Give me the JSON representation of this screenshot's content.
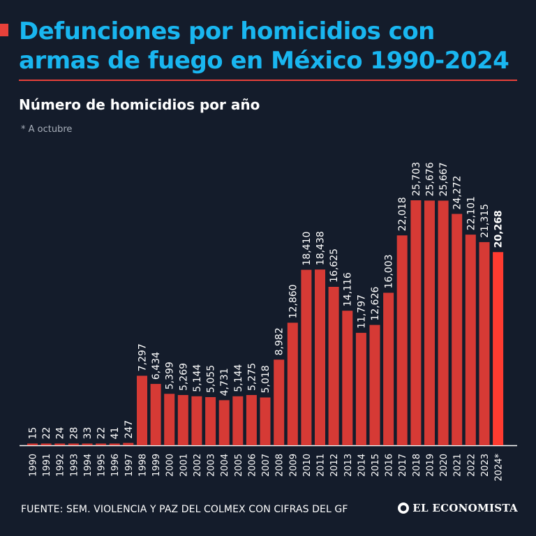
{
  "header": {
    "title": "Defunciones por homicidios con armas de fuego en México 1990-2024",
    "subtitle": "Número de homicidios por año",
    "note": "* A octubre"
  },
  "footer": {
    "source": "FUENTE: SEM. VIOLENCIA Y PAZ DEL COLMEX CON CIFRAS DEL GF",
    "brand": "EL ECONOMISTA",
    "brand_icon": "globe-icon"
  },
  "colors": {
    "background": "#141c2b",
    "title": "#19b6f0",
    "accent": "#e8413a",
    "bar": "#d63a35",
    "bar_highlight": "#ff3b30",
    "text": "#ffffff"
  },
  "chart_data": {
    "type": "bar",
    "categories": [
      "1990",
      "1991",
      "1992",
      "1993",
      "1994",
      "1995",
      "1996",
      "1997",
      "1998",
      "1999",
      "2000",
      "2001",
      "2002",
      "2003",
      "2004",
      "2005",
      "2006",
      "2007",
      "2008",
      "2009",
      "2010",
      "2011",
      "2012",
      "2013",
      "2014",
      "2015",
      "2016",
      "2017",
      "2018",
      "2019",
      "2020",
      "2021",
      "2022",
      "2023",
      "2024*"
    ],
    "values": [
      15,
      22,
      24,
      28,
      33,
      22,
      41,
      247,
      7297,
      6434,
      5399,
      5269,
      5144,
      5055,
      4731,
      5144,
      5275,
      5018,
      8982,
      12860,
      18410,
      18438,
      16625,
      14116,
      11797,
      12626,
      16003,
      22018,
      25703,
      25676,
      25667,
      24272,
      22101,
      21315,
      20268
    ],
    "value_labels": [
      "15",
      "22",
      "24",
      "28",
      "33",
      "22",
      "41",
      "247",
      "7,297",
      "6,434",
      "5,399",
      "5,269",
      "5,144",
      "5,055",
      "4,731",
      "5,144",
      "5,275",
      "5,018",
      "8,982",
      "12,860",
      "18,410",
      "18,438",
      "16,625",
      "14,116",
      "11,797",
      "12,626",
      "16,003",
      "22,018",
      "25,703",
      "25,676",
      "25,667",
      "24,272",
      "22,101",
      "21,315",
      "20,268"
    ],
    "highlight_index": 34,
    "ylim": [
      0,
      25703
    ],
    "grid": false,
    "legend": "none"
  }
}
